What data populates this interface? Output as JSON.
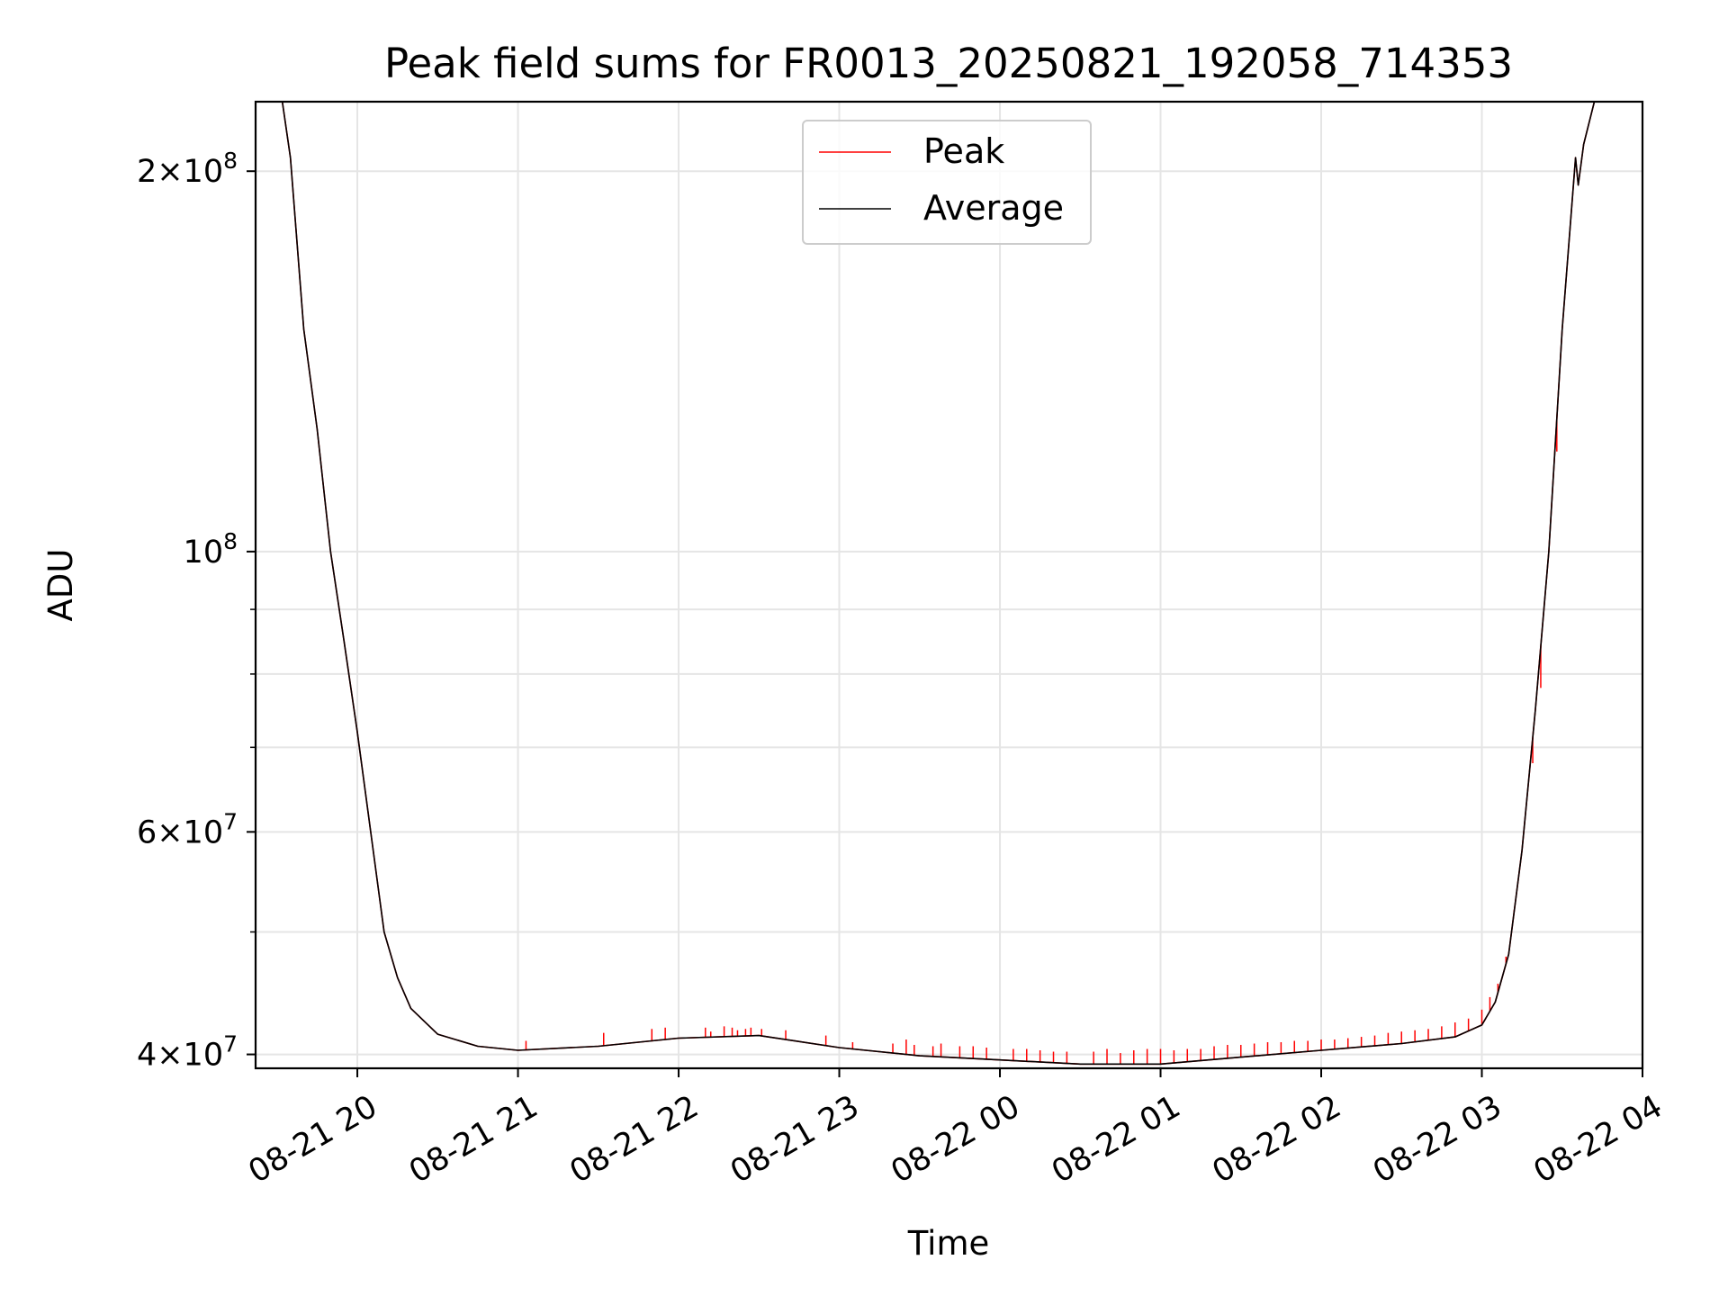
{
  "chart_data": {
    "type": "line",
    "title": "Peak field sums for FR0013_20250821_192058_714353",
    "xlabel": "Time",
    "ylabel": "ADU",
    "y_scale": "log",
    "grid": true,
    "legend_placement": "upper center",
    "xlim": [
      "2025-08-21 19:22",
      "2025-08-22 04:00"
    ],
    "ylim": [
      39000000,
      227000000
    ],
    "x_ticks": [
      {
        "t": "2025-08-21 20:00",
        "label": "08-21 20"
      },
      {
        "t": "2025-08-21 21:00",
        "label": "08-21 21"
      },
      {
        "t": "2025-08-21 22:00",
        "label": "08-21 22"
      },
      {
        "t": "2025-08-21 23:00",
        "label": "08-21 23"
      },
      {
        "t": "2025-08-22 00:00",
        "label": "08-22 00"
      },
      {
        "t": "2025-08-22 01:00",
        "label": "08-22 01"
      },
      {
        "t": "2025-08-22 02:00",
        "label": "08-22 02"
      },
      {
        "t": "2025-08-22 03:00",
        "label": "08-22 03"
      },
      {
        "t": "2025-08-22 04:00",
        "label": "08-22 04"
      }
    ],
    "y_ticks": [
      {
        "value": 40000000,
        "mantissa": "4",
        "exponent": "7"
      },
      {
        "value": 60000000,
        "mantissa": "6",
        "exponent": "7"
      },
      {
        "value": 100000000,
        "mantissa": "",
        "exponent": "8"
      },
      {
        "value": 200000000,
        "mantissa": "2",
        "exponent": "8"
      }
    ],
    "y_minor_ticks": [
      50000000,
      70000000,
      80000000,
      90000000
    ],
    "series": [
      {
        "name": "Average",
        "color": "#000000",
        "points": [
          [
            "2025-08-21 19:22",
            227000000
          ],
          [
            "2025-08-21 19:32",
            227000000
          ],
          [
            "2025-08-21 19:35",
            205000000
          ],
          [
            "2025-08-21 19:40",
            150000000
          ],
          [
            "2025-08-21 19:45",
            125000000
          ],
          [
            "2025-08-21 19:50",
            100000000
          ],
          [
            "2025-08-21 19:55",
            85000000
          ],
          [
            "2025-08-21 20:00",
            72000000
          ],
          [
            "2025-08-21 20:05",
            60000000
          ],
          [
            "2025-08-21 20:10",
            50000000
          ],
          [
            "2025-08-21 20:15",
            46000000
          ],
          [
            "2025-08-21 20:20",
            43500000
          ],
          [
            "2025-08-21 20:30",
            41500000
          ],
          [
            "2025-08-21 20:45",
            40600000
          ],
          [
            "2025-08-21 21:00",
            40300000
          ],
          [
            "2025-08-21 21:30",
            40600000
          ],
          [
            "2025-08-21 22:00",
            41200000
          ],
          [
            "2025-08-21 22:30",
            41400000
          ],
          [
            "2025-08-21 23:00",
            40500000
          ],
          [
            "2025-08-21 23:30",
            39900000
          ],
          [
            "2025-08-22 00:00",
            39600000
          ],
          [
            "2025-08-22 00:30",
            39300000
          ],
          [
            "2025-08-22 01:00",
            39300000
          ],
          [
            "2025-08-22 01:30",
            39800000
          ],
          [
            "2025-08-22 02:00",
            40300000
          ],
          [
            "2025-08-22 02:30",
            40800000
          ],
          [
            "2025-08-22 02:50",
            41300000
          ],
          [
            "2025-08-22 03:00",
            42200000
          ],
          [
            "2025-08-22 03:05",
            44000000
          ],
          [
            "2025-08-22 03:10",
            48000000
          ],
          [
            "2025-08-22 03:15",
            58000000
          ],
          [
            "2025-08-22 03:20",
            75000000
          ],
          [
            "2025-08-22 03:25",
            100000000
          ],
          [
            "2025-08-22 03:30",
            150000000
          ],
          [
            "2025-08-22 03:35",
            205000000
          ],
          [
            "2025-08-22 03:36",
            195000000
          ],
          [
            "2025-08-22 03:38",
            210000000
          ],
          [
            "2025-08-22 03:42",
            227000000
          ],
          [
            "2025-08-22 03:51",
            227000000
          ]
        ]
      },
      {
        "name": "Peak",
        "color": "#ff0000",
        "points": [
          [
            "2025-08-21 19:22",
            227000000
          ],
          [
            "2025-08-21 19:32",
            227000000
          ],
          [
            "2025-08-21 19:35",
            205000000
          ],
          [
            "2025-08-21 19:40",
            150000000
          ],
          [
            "2025-08-21 19:45",
            125000000
          ],
          [
            "2025-08-21 19:50",
            100000000
          ],
          [
            "2025-08-21 19:55",
            85000000
          ],
          [
            "2025-08-21 20:00",
            72000000
          ],
          [
            "2025-08-21 20:05",
            60000000
          ],
          [
            "2025-08-21 20:10",
            50000000
          ],
          [
            "2025-08-21 20:15",
            46000000
          ],
          [
            "2025-08-21 20:20",
            43500000
          ],
          [
            "2025-08-21 20:30",
            41500000
          ],
          [
            "2025-08-21 20:45",
            40600000
          ],
          [
            "2025-08-21 21:00",
            40300000
          ],
          [
            "2025-08-21 21:30",
            40600000
          ],
          [
            "2025-08-21 22:00",
            41200000
          ],
          [
            "2025-08-21 22:30",
            41400000
          ],
          [
            "2025-08-21 23:00",
            40500000
          ],
          [
            "2025-08-21 23:30",
            39900000
          ],
          [
            "2025-08-22 00:00",
            39600000
          ],
          [
            "2025-08-22 00:30",
            39300000
          ],
          [
            "2025-08-22 01:00",
            39300000
          ],
          [
            "2025-08-22 01:30",
            39800000
          ],
          [
            "2025-08-22 02:00",
            40300000
          ],
          [
            "2025-08-22 02:30",
            40800000
          ],
          [
            "2025-08-22 02:50",
            41300000
          ],
          [
            "2025-08-22 03:00",
            42200000
          ],
          [
            "2025-08-22 03:05",
            44000000
          ],
          [
            "2025-08-22 03:10",
            48000000
          ],
          [
            "2025-08-22 03:15",
            58000000
          ],
          [
            "2025-08-22 03:20",
            75000000
          ],
          [
            "2025-08-22 03:25",
            100000000
          ],
          [
            "2025-08-22 03:30",
            150000000
          ],
          [
            "2025-08-22 03:35",
            205000000
          ],
          [
            "2025-08-22 03:36",
            195000000
          ],
          [
            "2025-08-22 03:38",
            210000000
          ],
          [
            "2025-08-22 03:42",
            227000000
          ],
          [
            "2025-08-22 03:51",
            227000000
          ]
        ],
        "spikes": [
          [
            "2025-08-21 21:03",
            41000000
          ],
          [
            "2025-08-21 21:32",
            41600000
          ],
          [
            "2025-08-21 21:50",
            41900000
          ],
          [
            "2025-08-21 21:55",
            42000000
          ],
          [
            "2025-08-21 22:10",
            42000000
          ],
          [
            "2025-08-21 22:12",
            41700000
          ],
          [
            "2025-08-21 22:17",
            42100000
          ],
          [
            "2025-08-21 22:20",
            42000000
          ],
          [
            "2025-08-21 22:22",
            41800000
          ],
          [
            "2025-08-21 22:25",
            41900000
          ],
          [
            "2025-08-21 22:27",
            42000000
          ],
          [
            "2025-08-21 22:31",
            41900000
          ],
          [
            "2025-08-21 22:40",
            41800000
          ],
          [
            "2025-08-21 22:55",
            41400000
          ],
          [
            "2025-08-21 23:05",
            40900000
          ],
          [
            "2025-08-21 23:20",
            40800000
          ],
          [
            "2025-08-21 23:25",
            41100000
          ],
          [
            "2025-08-21 23:28",
            40700000
          ],
          [
            "2025-08-21 23:35",
            40600000
          ],
          [
            "2025-08-21 23:38",
            40800000
          ],
          [
            "2025-08-21 23:45",
            40600000
          ],
          [
            "2025-08-21 23:50",
            40600000
          ],
          [
            "2025-08-21 23:55",
            40500000
          ],
          [
            "2025-08-22 00:05",
            40400000
          ],
          [
            "2025-08-22 00:10",
            40400000
          ],
          [
            "2025-08-22 00:15",
            40300000
          ],
          [
            "2025-08-22 00:20",
            40200000
          ],
          [
            "2025-08-22 00:25",
            40200000
          ],
          [
            "2025-08-22 00:35",
            40200000
          ],
          [
            "2025-08-22 00:40",
            40400000
          ],
          [
            "2025-08-22 00:45",
            40100000
          ],
          [
            "2025-08-22 00:50",
            40300000
          ],
          [
            "2025-08-22 00:55",
            40400000
          ],
          [
            "2025-08-22 01:00",
            40400000
          ],
          [
            "2025-08-22 01:05",
            40300000
          ],
          [
            "2025-08-22 01:10",
            40400000
          ],
          [
            "2025-08-22 01:15",
            40400000
          ],
          [
            "2025-08-22 01:20",
            40600000
          ],
          [
            "2025-08-22 01:25",
            40700000
          ],
          [
            "2025-08-22 01:30",
            40700000
          ],
          [
            "2025-08-22 01:35",
            40800000
          ],
          [
            "2025-08-22 01:40",
            40900000
          ],
          [
            "2025-08-22 01:45",
            40900000
          ],
          [
            "2025-08-22 01:50",
            41000000
          ],
          [
            "2025-08-22 01:55",
            41000000
          ],
          [
            "2025-08-22 02:00",
            41100000
          ],
          [
            "2025-08-22 02:05",
            41100000
          ],
          [
            "2025-08-22 02:10",
            41200000
          ],
          [
            "2025-08-22 02:15",
            41300000
          ],
          [
            "2025-08-22 02:20",
            41400000
          ],
          [
            "2025-08-22 02:25",
            41600000
          ],
          [
            "2025-08-22 02:30",
            41700000
          ],
          [
            "2025-08-22 02:35",
            41800000
          ],
          [
            "2025-08-22 02:40",
            41900000
          ],
          [
            "2025-08-22 02:45",
            42100000
          ],
          [
            "2025-08-22 02:50",
            42400000
          ],
          [
            "2025-08-22 02:55",
            42700000
          ],
          [
            "2025-08-22 03:00",
            43400000
          ],
          [
            "2025-08-22 03:03",
            44400000
          ],
          [
            "2025-08-22 03:06",
            45500000
          ],
          [
            "2025-08-22 03:09",
            47800000
          ],
          [
            "2025-08-22 03:12",
            52000000
          ],
          [
            "2025-08-22 03:16",
            61000000
          ],
          [
            "2025-08-22 03:19",
            68000000
          ],
          [
            "2025-08-22 03:22",
            78000000
          ],
          [
            "2025-08-22 03:28",
            120000000
          ]
        ]
      }
    ]
  }
}
